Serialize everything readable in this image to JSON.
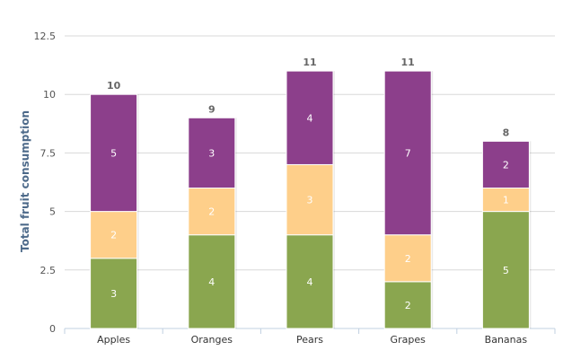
{
  "chart_data": {
    "type": "bar",
    "stacked": true,
    "title": "",
    "xlabel": "",
    "ylabel": "Total fruit consumption",
    "ylim": [
      0,
      12.5
    ],
    "yticks": [
      "0",
      "2.5",
      "5",
      "7.5",
      "10",
      "12.5"
    ],
    "categories": [
      "Apples",
      "Oranges",
      "Pears",
      "Grapes",
      "Bananas"
    ],
    "series": [
      {
        "values": [
          3,
          4,
          4,
          2,
          5
        ],
        "color": "#8aa64f"
      },
      {
        "values": [
          2,
          2,
          3,
          2,
          1
        ],
        "color": "#fecf8a"
      },
      {
        "values": [
          5,
          3,
          4,
          7,
          2
        ],
        "color": "#8c3f8b"
      }
    ],
    "totals": [
      10,
      9,
      11,
      11,
      8
    ],
    "grid": true,
    "legend": "none",
    "colors": {
      "grid": "#d8d8d8",
      "axis": "#c0d0e0",
      "segment_text": "#ffffff",
      "total_text": "#666666"
    }
  }
}
